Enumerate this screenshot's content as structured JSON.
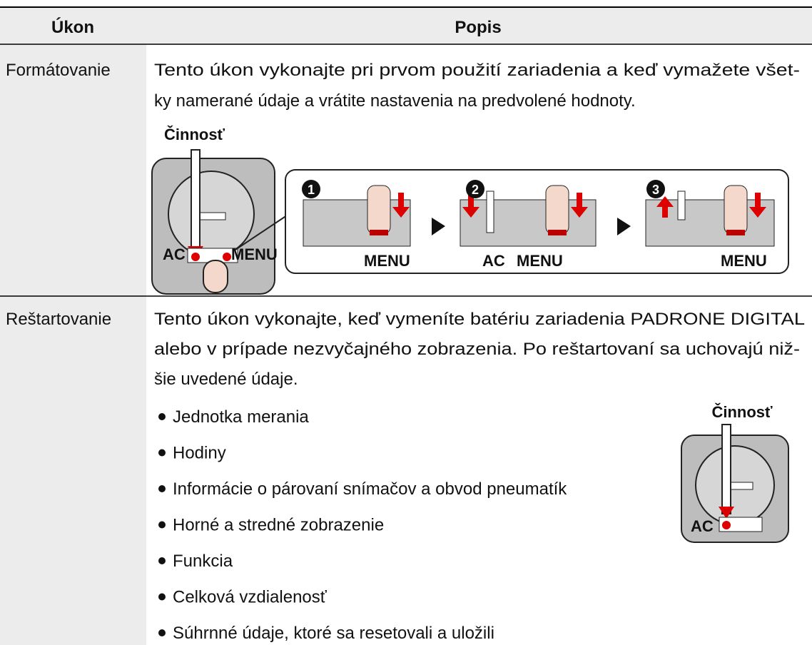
{
  "table": {
    "header": [
      "Úkon",
      "Popis"
    ],
    "rows": [
      {
        "action": "Formátovanie",
        "description": [
          "Tento úkon vykonajte pri prvom použití zariadenia a keď vymažete všet-",
          "ky namerané údaje a vrátite nastavenia na predvolené hodnoty."
        ],
        "figure": {
          "caption": "Činnosť",
          "device_labels": [
            "AC",
            "MENU"
          ],
          "steps": [
            {
              "number": "1",
              "labels": [
                "MENU"
              ]
            },
            {
              "number": "2",
              "labels": [
                "AC",
                "MENU"
              ]
            },
            {
              "number": "3",
              "labels": [
                "MENU"
              ]
            }
          ]
        }
      },
      {
        "action": "Reštartovanie",
        "description": [
          "Tento úkon vykonajte, keď vymeníte batériu zariadenia PADRONE DIGITAL",
          "alebo v prípade nezvyčajného zobrazenia. Po reštartovaní sa uchovajú niž-",
          "šie uvedené údaje."
        ],
        "items": [
          "Jednotka merania",
          "Hodiny",
          "Informácie o párovaní snímačov a obvod pneumatík",
          "Horné a stredné zobrazenie",
          "Funkcia",
          "Celková vzdialenosť",
          "Súhrnné údaje, ktoré sa resetovali a uložili"
        ],
        "figure": {
          "caption": "Činnosť",
          "device_labels": [
            "AC"
          ]
        }
      }
    ]
  }
}
